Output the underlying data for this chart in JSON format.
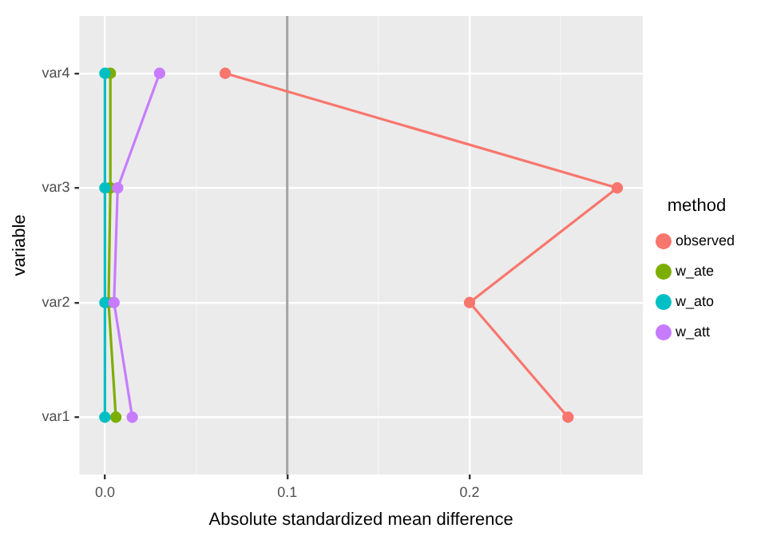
{
  "chart_data": {
    "type": "line",
    "orientation": "horizontal",
    "xlabel": "Absolute standardized mean difference",
    "ylabel": "variable",
    "legend_title": "method",
    "legend": "right",
    "grid": true,
    "marker": "circle",
    "line_style": "solid",
    "categories": [
      "var4",
      "var3",
      "var2",
      "var1"
    ],
    "xlim": [
      -0.014,
      0.295
    ],
    "xticks": [
      {
        "value": 0,
        "label": "0.0"
      },
      {
        "value": 0.05,
        "label": null
      },
      0.1,
      {
        "value": 0.15,
        "label": null
      },
      0.2,
      {
        "value": 0.25,
        "label": null
      }
    ],
    "ref_lines": [
      {
        "axis": "x",
        "value": 0.1,
        "color": "#a6a6a6"
      }
    ],
    "series": [
      {
        "name": "observed",
        "color": "#f8766d",
        "values": [
          0.066,
          0.281,
          0.2,
          0.254
        ]
      },
      {
        "name": "w_ate",
        "color": "#7cae00",
        "values": [
          0.003,
          0.003,
          0.002,
          0.006
        ]
      },
      {
        "name": "w_ato",
        "color": "#00bfc4",
        "values": [
          0,
          0,
          0,
          0
        ]
      },
      {
        "name": "w_att",
        "color": "#c77cff",
        "values": [
          0.03,
          0.007,
          0.005,
          0.015
        ]
      }
    ]
  }
}
